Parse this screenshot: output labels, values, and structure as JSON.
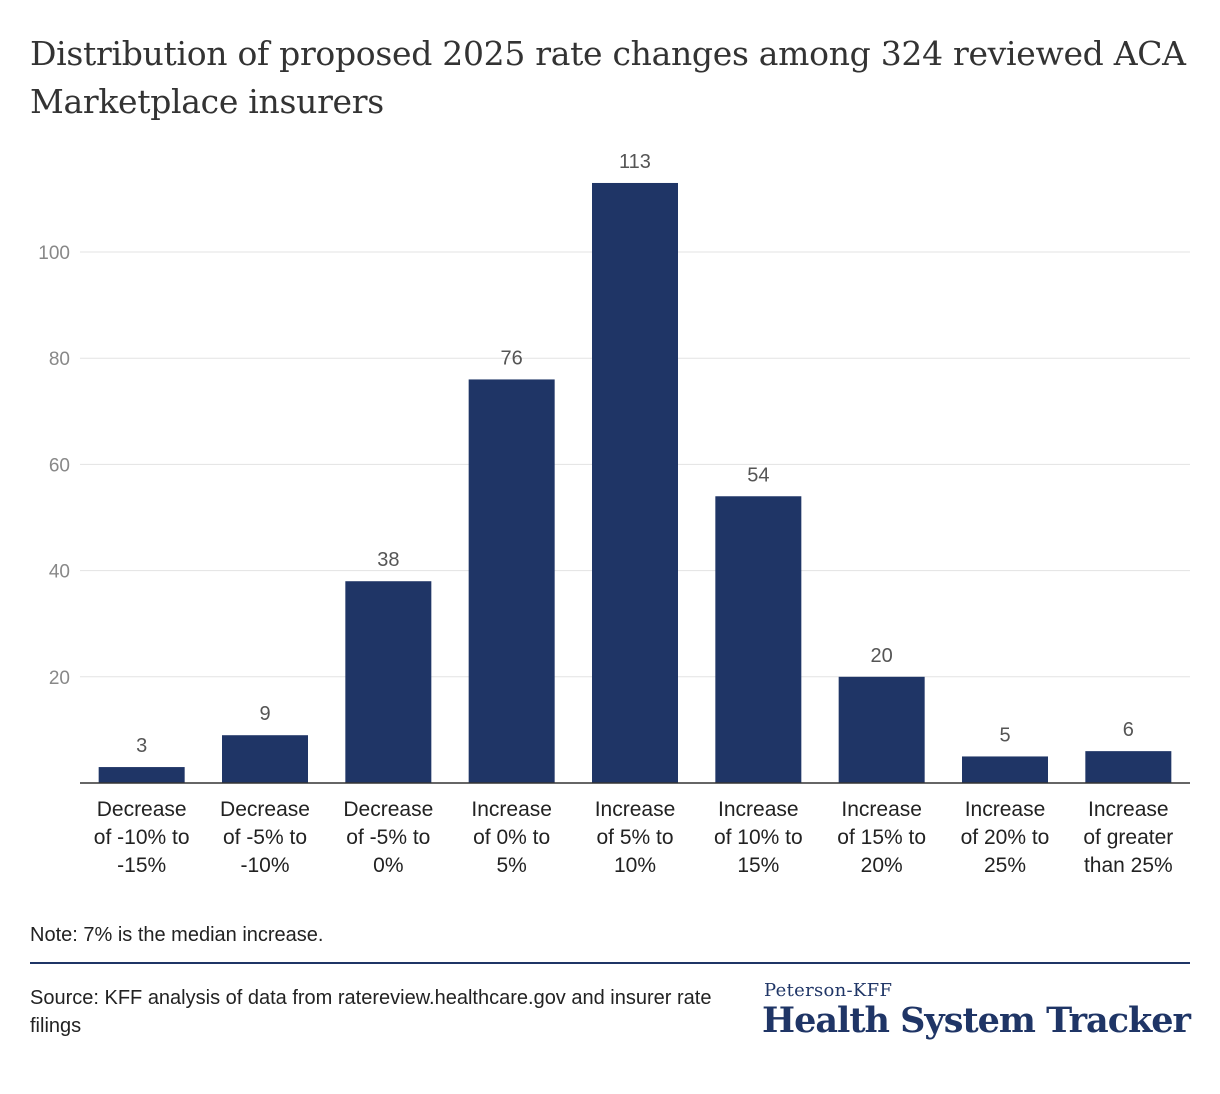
{
  "title": "Distribution of proposed 2025 rate changes among 324 reviewed ACA Marketplace insurers",
  "note": "Note: 7% is the median increase.",
  "source": "Source: KFF analysis of data from ratereview.healthcare.gov and insurer rate filings",
  "brand": {
    "sub": "Peterson-KFF",
    "main": "Health System Tracker"
  },
  "chart_data": {
    "type": "bar",
    "categories": [
      [
        "Decrease",
        "of -10% to",
        "-15%"
      ],
      [
        "Decrease",
        "of -5% to",
        "-10%"
      ],
      [
        "Decrease",
        "of -5% to",
        "0%"
      ],
      [
        "Increase",
        "of 0% to",
        "5%"
      ],
      [
        "Increase",
        "of 5% to",
        "10%"
      ],
      [
        "Increase",
        "of 10% to",
        "15%"
      ],
      [
        "Increase",
        "of 15% to",
        "20%"
      ],
      [
        "Increase",
        "of 20% to",
        "25%"
      ],
      [
        "Increase",
        "of greater",
        "than 25%"
      ]
    ],
    "values": [
      3,
      9,
      38,
      76,
      113,
      54,
      20,
      5,
      6
    ],
    "yticks": [
      20,
      40,
      60,
      80,
      100
    ],
    "ylim": [
      0,
      120
    ],
    "grid": true,
    "bar_color": "#1f3566"
  }
}
